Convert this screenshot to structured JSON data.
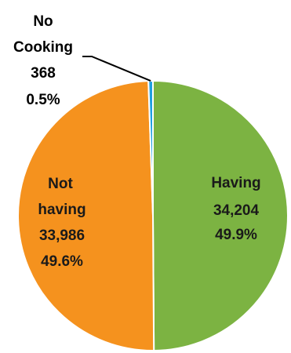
{
  "chart_data": {
    "type": "pie",
    "title": "",
    "slices": [
      {
        "label_lines": [
          "Having"
        ],
        "value": 34204,
        "value_label": "34,204",
        "percent": "49.9%",
        "color": "#7cb342",
        "label_color": "#1a1a1a"
      },
      {
        "label_lines": [
          "Not",
          "having"
        ],
        "value": 33986,
        "value_label": "33,986",
        "percent": "49.6%",
        "color": "#f5921e",
        "label_color": "#1a1a1a"
      },
      {
        "label_lines": [
          "No",
          "Cooking"
        ],
        "value": 368,
        "value_label": "368",
        "percent": "0.5%",
        "color": "#1e9fe0",
        "label_color": "#000000"
      }
    ],
    "legend": "none",
    "data_labels": "category, value, percent",
    "border_color": "#ffffff"
  }
}
